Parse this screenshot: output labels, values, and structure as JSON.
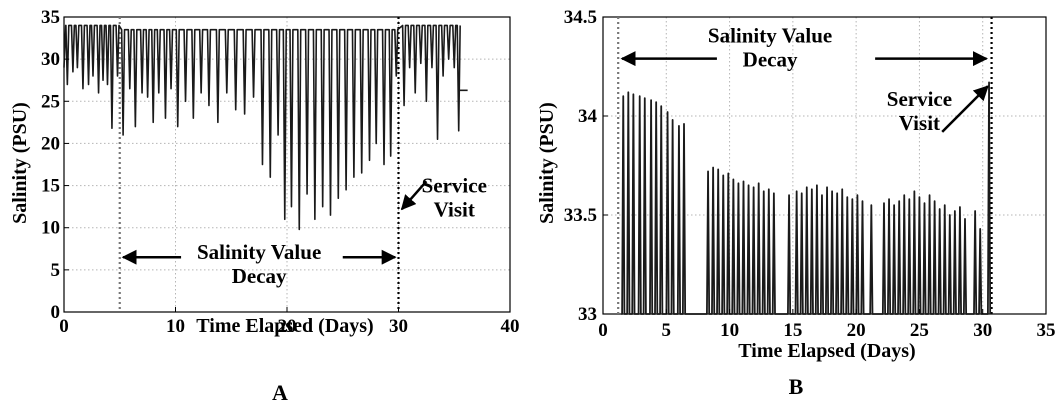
{
  "chart_data": [
    {
      "type": "line",
      "panel_label": "A",
      "xlabel": "Time Elapsed (Days)",
      "ylabel": "Salinity (PSU)",
      "xlim": [
        0,
        40
      ],
      "ylim": [
        0,
        35
      ],
      "xticks": [
        0,
        10,
        20,
        30,
        40
      ],
      "yticks": [
        0,
        5,
        10,
        15,
        20,
        25,
        30,
        35
      ],
      "grid": true,
      "tail_segment": {
        "x": [
          35.5,
          36.2
        ],
        "y": [
          26.3,
          26.3
        ]
      },
      "series": [
        {
          "baseline_regions": [
            {
              "x_start": 0,
              "x_end": 5.0,
              "top": 34.0
            },
            {
              "x_start": 5.0,
              "x_end": 30.0,
              "top": 33.5
            },
            {
              "x_start": 30.0,
              "x_end": 35.5,
              "top": 34.0
            }
          ],
          "dips": [
            {
              "x": 0.3,
              "min": 27.0
            },
            {
              "x": 0.8,
              "min": 28.5
            },
            {
              "x": 1.2,
              "min": 29.0
            },
            {
              "x": 1.7,
              "min": 26.5
            },
            {
              "x": 2.2,
              "min": 27.0
            },
            {
              "x": 2.6,
              "min": 28.0
            },
            {
              "x": 3.1,
              "min": 26.0
            },
            {
              "x": 3.5,
              "min": 27.5
            },
            {
              "x": 3.9,
              "min": 27.0
            },
            {
              "x": 4.3,
              "min": 21.8
            },
            {
              "x": 4.8,
              "min": 28.0
            },
            {
              "x": 5.3,
              "min": 21.0
            },
            {
              "x": 5.9,
              "min": 26.5
            },
            {
              "x": 6.4,
              "min": 22.0
            },
            {
              "x": 7.0,
              "min": 26.0
            },
            {
              "x": 7.5,
              "min": 25.5
            },
            {
              "x": 8.0,
              "min": 22.5
            },
            {
              "x": 8.5,
              "min": 26.0
            },
            {
              "x": 9.1,
              "min": 23.0
            },
            {
              "x": 9.6,
              "min": 26.5
            },
            {
              "x": 10.2,
              "min": 22.0
            },
            {
              "x": 10.9,
              "min": 25.0
            },
            {
              "x": 11.6,
              "min": 23.0
            },
            {
              "x": 12.3,
              "min": 26.0
            },
            {
              "x": 13.0,
              "min": 24.5
            },
            {
              "x": 13.8,
              "min": 22.5
            },
            {
              "x": 14.6,
              "min": 26.0
            },
            {
              "x": 15.4,
              "min": 24.0
            },
            {
              "x": 16.2,
              "min": 23.5
            },
            {
              "x": 17.0,
              "min": 25.5
            },
            {
              "x": 17.8,
              "min": 17.5
            },
            {
              "x": 18.5,
              "min": 16.0
            },
            {
              "x": 19.2,
              "min": 21.0
            },
            {
              "x": 19.8,
              "min": 11.0
            },
            {
              "x": 20.4,
              "min": 12.5
            },
            {
              "x": 21.1,
              "min": 9.8
            },
            {
              "x": 21.8,
              "min": 14.0
            },
            {
              "x": 22.5,
              "min": 11.0
            },
            {
              "x": 23.2,
              "min": 12.5
            },
            {
              "x": 23.9,
              "min": 11.5
            },
            {
              "x": 24.6,
              "min": 13.5
            },
            {
              "x": 25.3,
              "min": 14.5
            },
            {
              "x": 26.0,
              "min": 16.0
            },
            {
              "x": 26.7,
              "min": 16.5
            },
            {
              "x": 27.4,
              "min": 18.0
            },
            {
              "x": 28.0,
              "min": 20.0
            },
            {
              "x": 28.7,
              "min": 17.5
            },
            {
              "x": 29.3,
              "min": 18.5
            },
            {
              "x": 29.8,
              "min": 28.0
            },
            {
              "x": 30.5,
              "min": 24.5
            },
            {
              "x": 31.0,
              "min": 29.0
            },
            {
              "x": 31.5,
              "min": 26.0
            },
            {
              "x": 32.0,
              "min": 29.5
            },
            {
              "x": 32.5,
              "min": 25.0
            },
            {
              "x": 33.0,
              "min": 29.0
            },
            {
              "x": 33.5,
              "min": 20.5
            },
            {
              "x": 34.0,
              "min": 28.0
            },
            {
              "x": 34.5,
              "min": 30.0
            },
            {
              "x": 35.0,
              "min": 29.0
            },
            {
              "x": 35.4,
              "min": 21.5
            }
          ]
        }
      ],
      "vertical_lines": [
        {
          "x": 5.0,
          "style": "dotted",
          "color": "#777777"
        },
        {
          "x": 30.0,
          "style": "dotted",
          "color": "#000000"
        }
      ],
      "annotations": [
        {
          "text_lines": [
            "Salinity Value",
            "Decay"
          ],
          "x": 17.5,
          "y": 6.3
        },
        {
          "text_lines": [
            "Service",
            "Visit"
          ],
          "x": 35.0,
          "y": 14.2
        }
      ],
      "arrows": [
        {
          "from": [
            10.5,
            6.5
          ],
          "to": [
            5.3,
            6.5
          ]
        },
        {
          "from": [
            25.0,
            6.5
          ],
          "to": [
            29.7,
            6.5
          ]
        },
        {
          "from": [
            32.5,
            15.5
          ],
          "to": [
            30.3,
            12.2
          ]
        }
      ]
    },
    {
      "type": "line",
      "panel_label": "B",
      "xlabel": "Time Elapsed (Days)",
      "ylabel": "Salinity (PSU)",
      "xlim": [
        0,
        35
      ],
      "ylim": [
        33,
        34.5
      ],
      "xticks": [
        0,
        5,
        10,
        15,
        20,
        25,
        30,
        35
      ],
      "yticks": [
        33,
        33.5,
        34,
        34.5
      ],
      "grid": true,
      "series": [
        {
          "baseline_min": 33.0,
          "spikes": [
            {
              "x": 1.6,
              "max": 34.1
            },
            {
              "x": 2.0,
              "max": 34.12
            },
            {
              "x": 2.4,
              "max": 34.11
            },
            {
              "x": 2.9,
              "max": 34.1
            },
            {
              "x": 3.3,
              "max": 34.09
            },
            {
              "x": 3.8,
              "max": 34.08
            },
            {
              "x": 4.2,
              "max": 34.07
            },
            {
              "x": 4.6,
              "max": 34.05
            },
            {
              "x": 5.1,
              "max": 34.02
            },
            {
              "x": 5.5,
              "max": 33.98
            },
            {
              "x": 6.0,
              "max": 33.95
            },
            {
              "x": 6.4,
              "max": 33.96
            },
            {
              "x": 8.3,
              "max": 33.72
            },
            {
              "x": 8.7,
              "max": 33.74
            },
            {
              "x": 9.1,
              "max": 33.73
            },
            {
              "x": 9.5,
              "max": 33.7
            },
            {
              "x": 9.9,
              "max": 33.71
            },
            {
              "x": 10.3,
              "max": 33.68
            },
            {
              "x": 10.7,
              "max": 33.66
            },
            {
              "x": 11.1,
              "max": 33.67
            },
            {
              "x": 11.5,
              "max": 33.65
            },
            {
              "x": 11.9,
              "max": 33.64
            },
            {
              "x": 12.3,
              "max": 33.66
            },
            {
              "x": 12.7,
              "max": 33.62
            },
            {
              "x": 13.1,
              "max": 33.63
            },
            {
              "x": 13.5,
              "max": 33.61
            },
            {
              "x": 14.7,
              "max": 33.6
            },
            {
              "x": 15.3,
              "max": 33.62
            },
            {
              "x": 15.7,
              "max": 33.61
            },
            {
              "x": 16.1,
              "max": 33.64
            },
            {
              "x": 16.5,
              "max": 33.63
            },
            {
              "x": 16.9,
              "max": 33.65
            },
            {
              "x": 17.3,
              "max": 33.6
            },
            {
              "x": 17.7,
              "max": 33.64
            },
            {
              "x": 18.1,
              "max": 33.62
            },
            {
              "x": 18.5,
              "max": 33.61
            },
            {
              "x": 18.9,
              "max": 33.63
            },
            {
              "x": 19.3,
              "max": 33.59
            },
            {
              "x": 19.7,
              "max": 33.58
            },
            {
              "x": 20.1,
              "max": 33.6
            },
            {
              "x": 20.5,
              "max": 33.57
            },
            {
              "x": 21.2,
              "max": 33.55
            },
            {
              "x": 22.2,
              "max": 33.56
            },
            {
              "x": 22.6,
              "max": 33.58
            },
            {
              "x": 23.0,
              "max": 33.55
            },
            {
              "x": 23.4,
              "max": 33.57
            },
            {
              "x": 23.8,
              "max": 33.6
            },
            {
              "x": 24.2,
              "max": 33.58
            },
            {
              "x": 24.6,
              "max": 33.62
            },
            {
              "x": 25.0,
              "max": 33.59
            },
            {
              "x": 25.4,
              "max": 33.56
            },
            {
              "x": 25.8,
              "max": 33.6
            },
            {
              "x": 26.2,
              "max": 33.57
            },
            {
              "x": 26.6,
              "max": 33.53
            },
            {
              "x": 27.0,
              "max": 33.55
            },
            {
              "x": 27.4,
              "max": 33.5
            },
            {
              "x": 27.8,
              "max": 33.52
            },
            {
              "x": 28.2,
              "max": 33.54
            },
            {
              "x": 28.6,
              "max": 33.48
            },
            {
              "x": 29.4,
              "max": 33.52
            },
            {
              "x": 29.8,
              "max": 33.43
            },
            {
              "x": 30.5,
              "max": 34.17
            }
          ]
        }
      ],
      "vertical_lines": [
        {
          "x": 1.2,
          "style": "dotted",
          "color": "#777777"
        },
        {
          "x": 30.7,
          "style": "dotted",
          "color": "#000000"
        }
      ],
      "annotations": [
        {
          "text_lines": [
            "Salinity Value",
            "Decay"
          ],
          "x": 13.2,
          "y": 34.37
        },
        {
          "text_lines": [
            "Service",
            "Visit"
          ],
          "x": 25.0,
          "y": 34.05
        }
      ],
      "arrows": [
        {
          "from": [
            9.0,
            34.29
          ],
          "to": [
            1.5,
            34.29
          ]
        },
        {
          "from": [
            21.5,
            34.29
          ],
          "to": [
            30.3,
            34.29
          ]
        },
        {
          "from": [
            26.8,
            33.92
          ],
          "to": [
            30.4,
            34.15
          ]
        }
      ]
    }
  ]
}
